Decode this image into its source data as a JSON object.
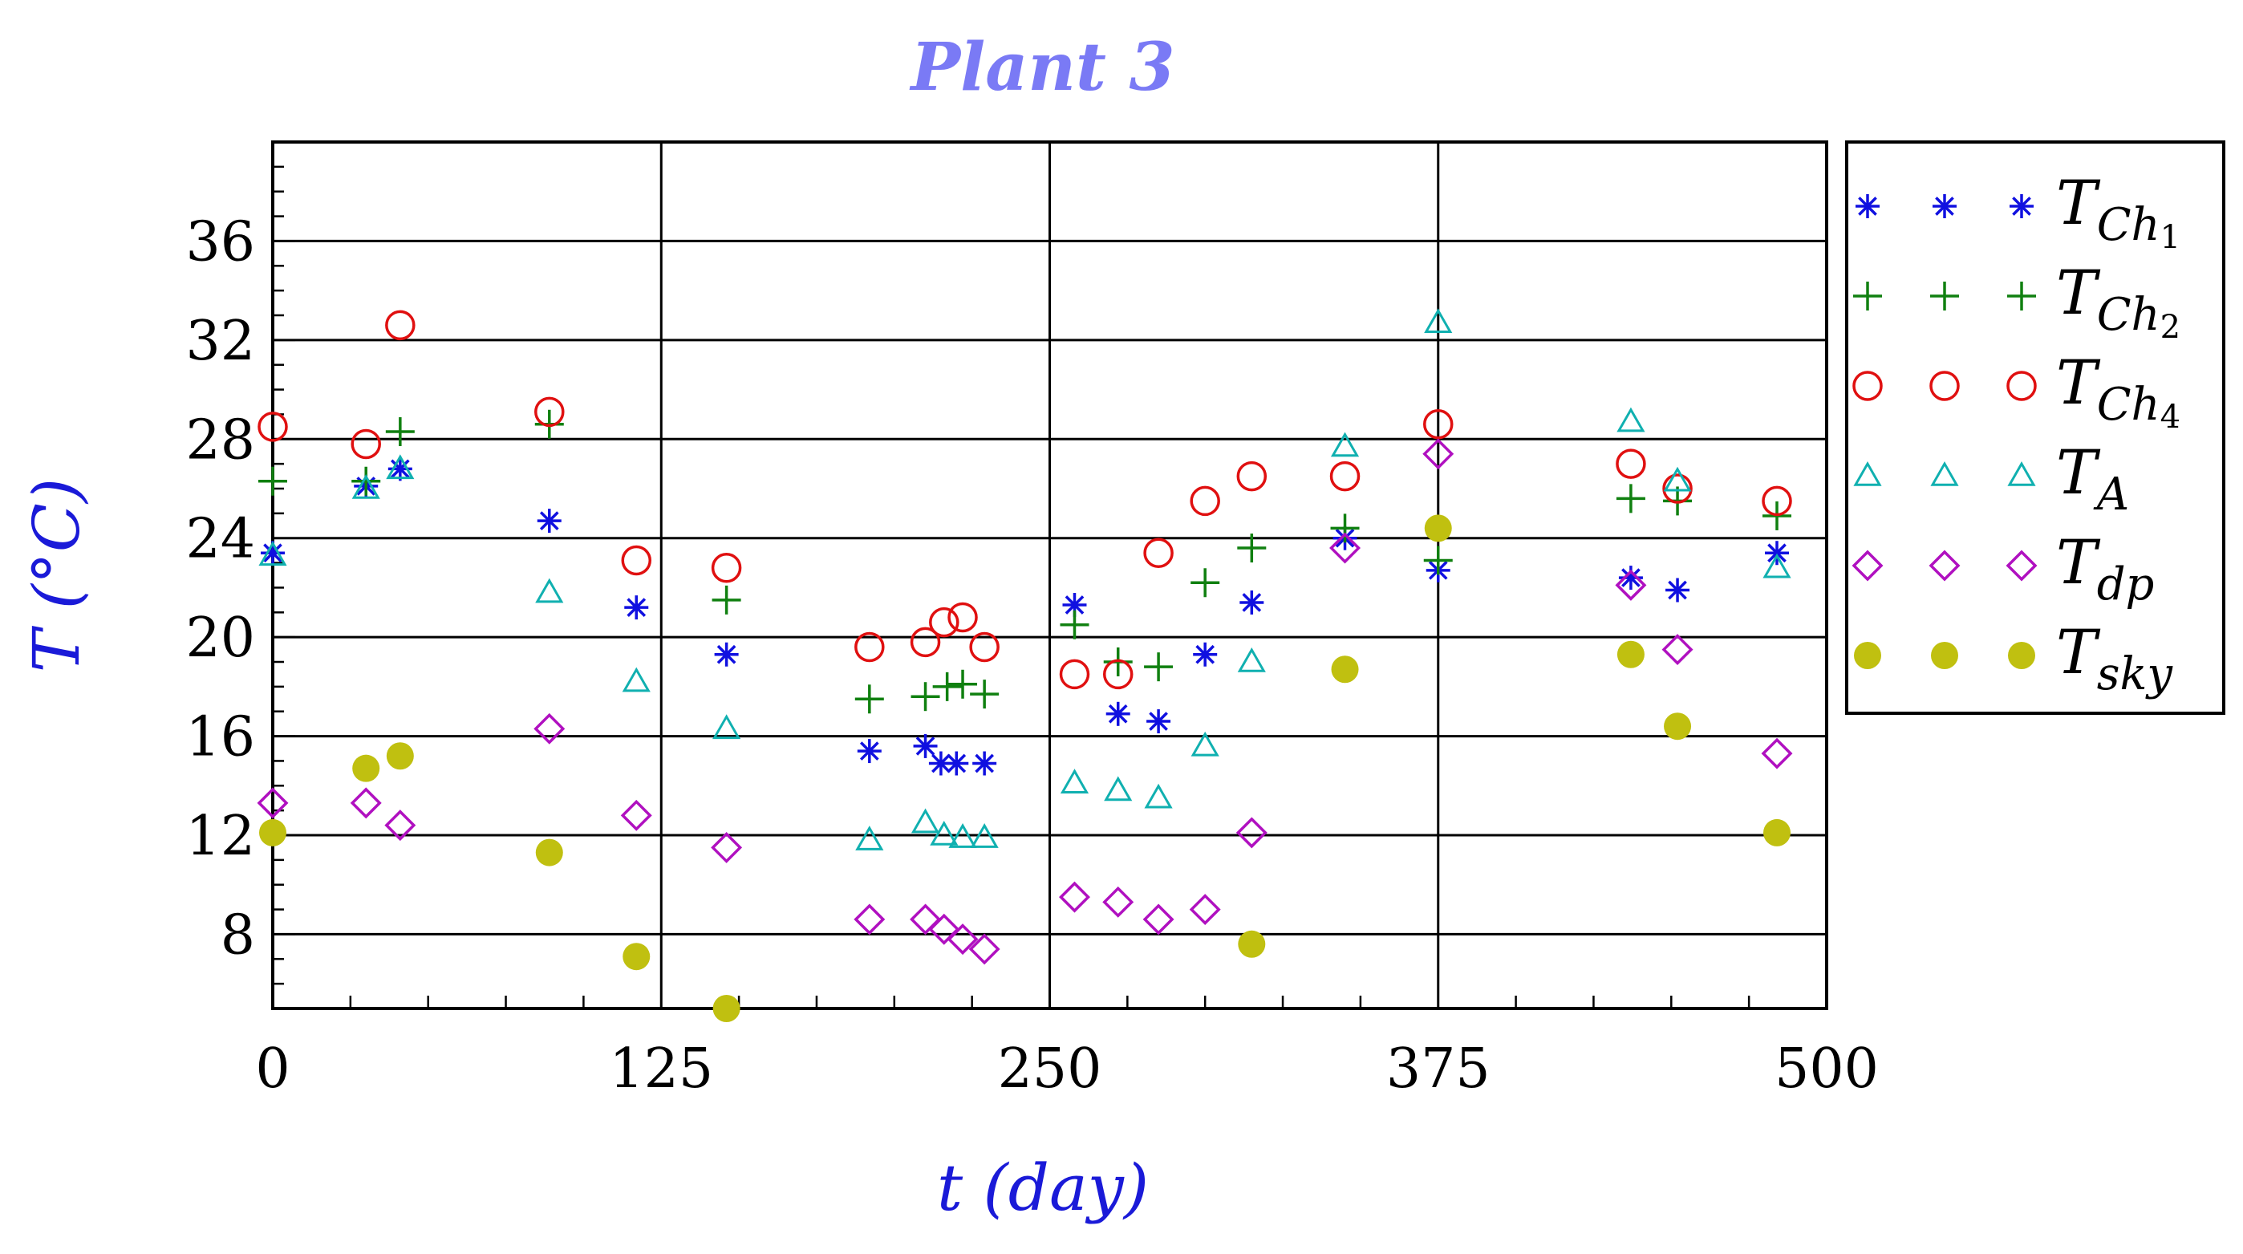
{
  "chart_data": {
    "type": "scatter",
    "title": "Plant 3",
    "title_color": "#7a7af5",
    "xlabel": "t (day)",
    "ylabel": "T (°C)",
    "label_color": "#1a1ad8",
    "xlim": [
      0,
      500
    ],
    "ylim": [
      5,
      40
    ],
    "xticks": [
      0,
      125,
      250,
      375,
      500
    ],
    "yticks": [
      8,
      12,
      16,
      20,
      24,
      28,
      32,
      36
    ],
    "grid": true,
    "legend_position": "right",
    "series": [
      {
        "name": "T_Ch1",
        "base": "T",
        "sub": "Ch",
        "subsub": "1",
        "marker": "asterisk",
        "color": "#1010e0",
        "x": [
          0,
          30,
          41,
          89,
          117,
          146,
          192,
          210,
          215,
          220,
          229,
          258,
          272,
          285,
          300,
          315,
          345,
          375,
          437,
          452,
          484
        ],
        "y": [
          23.4,
          26.1,
          26.8,
          24.7,
          21.2,
          19.3,
          15.4,
          15.6,
          14.9,
          14.9,
          14.9,
          21.3,
          16.9,
          16.6,
          19.3,
          21.4,
          24.0,
          22.7,
          22.4,
          21.9,
          23.4
        ]
      },
      {
        "name": "T_Ch2",
        "base": "T",
        "sub": "Ch",
        "subsub": "2",
        "marker": "plus",
        "color": "#108010",
        "x": [
          0,
          30,
          41,
          89,
          146,
          192,
          210,
          217,
          222,
          229,
          258,
          272,
          285,
          300,
          315,
          345,
          375,
          437,
          452,
          484
        ],
        "y": [
          26.3,
          26.3,
          28.3,
          28.6,
          21.5,
          17.5,
          17.6,
          18.0,
          18.1,
          17.7,
          20.5,
          19.0,
          18.8,
          22.2,
          23.6,
          24.4,
          23.1,
          25.6,
          25.5,
          24.9
        ]
      },
      {
        "name": "T_Ch4",
        "base": "T",
        "sub": "Ch",
        "subsub": "4",
        "marker": "circle",
        "color": "#e01010",
        "x": [
          0,
          30,
          41,
          89,
          117,
          146,
          192,
          210,
          216,
          222,
          229,
          258,
          272,
          285,
          300,
          315,
          345,
          375,
          437,
          452,
          484
        ],
        "y": [
          28.5,
          27.8,
          32.6,
          29.1,
          23.1,
          22.8,
          19.6,
          19.8,
          20.6,
          20.8,
          19.6,
          18.5,
          18.5,
          23.4,
          25.5,
          26.5,
          26.5,
          28.6,
          27.0,
          26.0,
          25.5
        ]
      },
      {
        "name": "T_A",
        "base": "T",
        "sub": "A",
        "subsub": "",
        "marker": "triangle",
        "color": "#10b0b0",
        "x": [
          0,
          30,
          41,
          89,
          117,
          146,
          192,
          210,
          216,
          222,
          229,
          258,
          272,
          285,
          300,
          315,
          345,
          375,
          437,
          452,
          484
        ],
        "y": [
          23.3,
          26.0,
          26.8,
          21.8,
          18.2,
          16.3,
          11.8,
          12.5,
          12.0,
          11.9,
          11.9,
          14.1,
          13.8,
          13.5,
          15.6,
          19.0,
          27.7,
          32.7,
          28.7,
          26.3,
          22.8
        ]
      },
      {
        "name": "T_dp",
        "base": "T",
        "sub": "dp",
        "subsub": "",
        "marker": "diamond",
        "color": "#b010c0",
        "x": [
          0,
          30,
          41,
          89,
          117,
          146,
          192,
          210,
          216,
          222,
          229,
          258,
          272,
          285,
          300,
          315,
          345,
          375,
          437,
          452,
          484
        ],
        "y": [
          13.3,
          13.3,
          12.4,
          16.3,
          12.8,
          11.5,
          8.6,
          8.6,
          8.2,
          7.8,
          7.4,
          9.5,
          9.3,
          8.6,
          9.0,
          12.1,
          23.6,
          27.4,
          22.1,
          19.5,
          15.3
        ]
      },
      {
        "name": "T_sky",
        "base": "T",
        "sub": "sky",
        "subsub": "",
        "marker": "dot",
        "color": "#c0c010",
        "x": [
          0,
          30,
          41,
          89,
          117,
          146,
          315,
          345,
          375,
          437,
          452,
          484
        ],
        "y": [
          12.1,
          14.7,
          15.2,
          11.3,
          7.1,
          5.0,
          7.6,
          18.7,
          24.4,
          19.3,
          16.4,
          12.1
        ]
      }
    ]
  }
}
